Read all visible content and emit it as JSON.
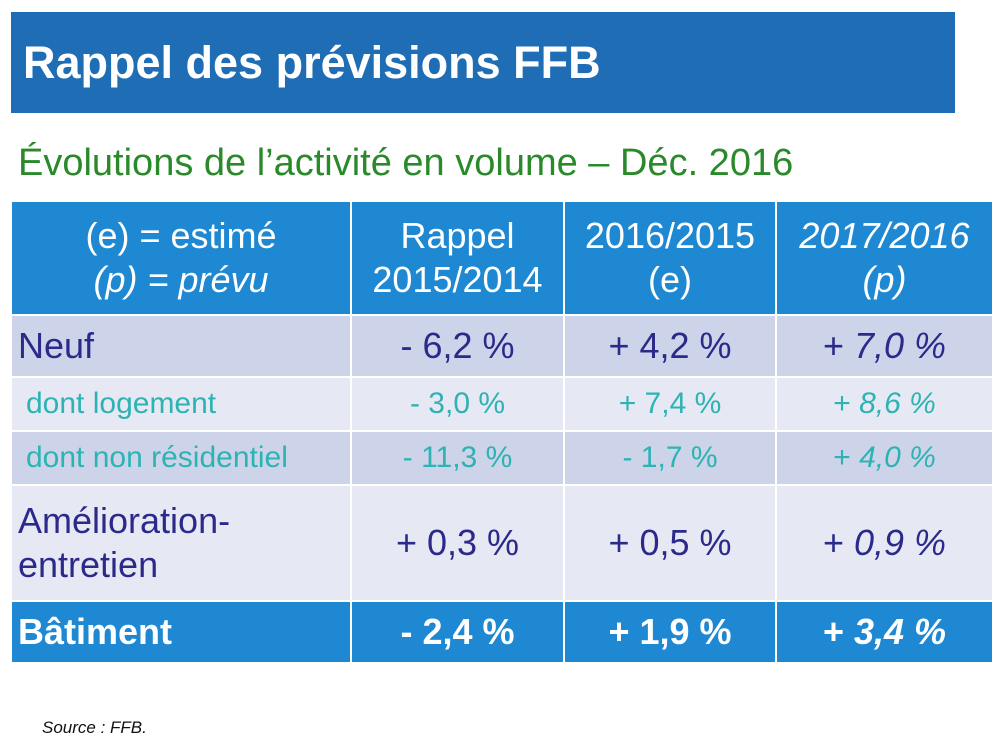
{
  "slide": {
    "title": "Rappel des prévisions FFB",
    "subtitle": "Évolutions de l’activité en volume – Déc. 2016",
    "source": "Source : FFB."
  },
  "table": {
    "header": {
      "legend_line1": "(e) = estimé",
      "legend_line2": "(p) = prévu",
      "col1_line1": "Rappel",
      "col1_line2": "2015/2014",
      "col2_line1": "2016/2015",
      "col2_line2": "(e)",
      "col3_line1": "2017/2016",
      "col3_line2": "(p)"
    },
    "rows": [
      {
        "label": "Neuf",
        "v1": "- 6,2 %",
        "v2": "+ 4,2 %",
        "v3_sign": "+ ",
        "v3_num": "7,0 %"
      },
      {
        "label": "dont logement",
        "v1": "- 3,0 %",
        "v2": "+ 7,4 %",
        "v3_sign": "+ ",
        "v3_num": "8,6 %"
      },
      {
        "label": "dont non résidentiel",
        "v1": "- 11,3 %",
        "v2": "- 1,7 %",
        "v3_sign": "+ ",
        "v3_num": "4,0 %"
      },
      {
        "label_line1": "Amélioration-",
        "label_line2": "entretien",
        "v1": "+ 0,3 %",
        "v2": "+ 0,5 %",
        "v3_sign": "+ ",
        "v3_num": "0,9 %"
      },
      {
        "label": "Bâtiment",
        "v1": "- 2,4 %",
        "v2": "+ 1,9 %",
        "v3_sign": "+ ",
        "v3_num": "3,4 %"
      }
    ]
  },
  "colors": {
    "title_bar": "#1f6db5",
    "header_blue": "#1e88d2",
    "subtitle_green": "#2a8a2a",
    "row_dark": "#cdd4e9",
    "row_light": "#e6e9f4",
    "text_navy": "#2b2a8a",
    "text_teal": "#2db3b3"
  }
}
